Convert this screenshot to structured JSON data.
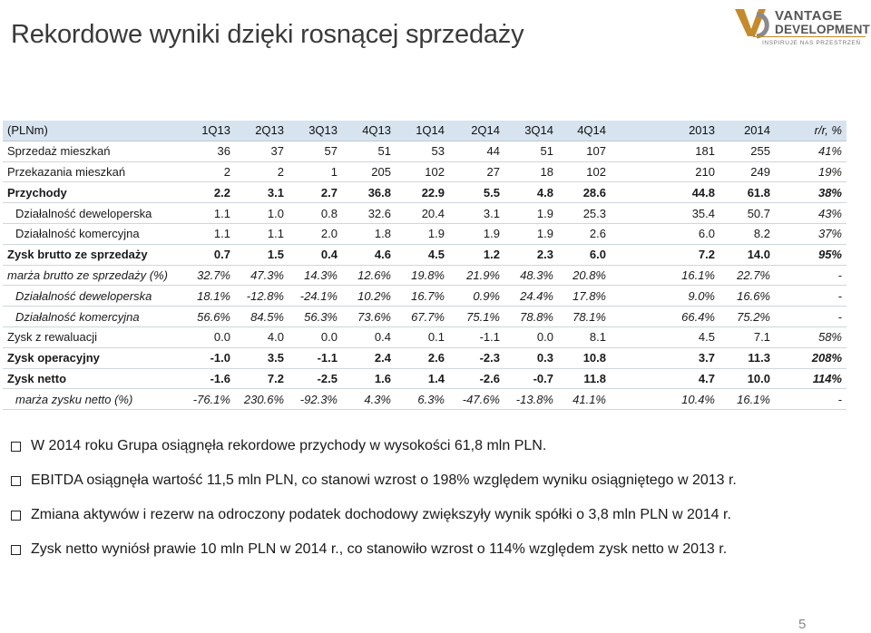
{
  "title": "Rekordowe wyniki dzięki rosnącej sprzedaży",
  "logo": {
    "line1": "VANTAGE",
    "line2": "DEVELOPMENT",
    "tagline": "INSPIRUJE NAS PRZESTRZEŃ",
    "icon": "vd-logo-icon"
  },
  "table": {
    "header": [
      "(PLNm)",
      "1Q13",
      "2Q13",
      "3Q13",
      "4Q13",
      "1Q14",
      "2Q14",
      "3Q14",
      "4Q14",
      "",
      "2013",
      "2014",
      "r/r, %"
    ],
    "rows": [
      {
        "style": "plain",
        "cells": [
          "Sprzedaż mieszkań",
          "36",
          "37",
          "57",
          "51",
          "53",
          "44",
          "51",
          "107",
          "",
          "181",
          "255",
          "41%"
        ]
      },
      {
        "style": "plain",
        "cells": [
          "Przekazania mieszkań",
          "2",
          "2",
          "1",
          "205",
          "102",
          "27",
          "18",
          "102",
          "",
          "210",
          "249",
          "19%"
        ]
      },
      {
        "style": "bold",
        "cells": [
          "Przychody",
          "2.2",
          "3.1",
          "2.7",
          "36.8",
          "22.9",
          "5.5",
          "4.8",
          "28.6",
          "",
          "44.8",
          "61.8",
          "38%"
        ]
      },
      {
        "style": "indent",
        "cells": [
          "Działalność deweloperska",
          "1.1",
          "1.0",
          "0.8",
          "32.6",
          "20.4",
          "3.1",
          "1.9",
          "25.3",
          "",
          "35.4",
          "50.7",
          "43%"
        ]
      },
      {
        "style": "indent",
        "cells": [
          "Działalność komercyjna",
          "1.1",
          "1.1",
          "2.0",
          "1.8",
          "1.9",
          "1.9",
          "1.9",
          "2.6",
          "",
          "6.0",
          "8.2",
          "37%"
        ]
      },
      {
        "style": "bold",
        "cells": [
          "Zysk brutto ze sprzedaży",
          "0.7",
          "1.5",
          "0.4",
          "4.6",
          "4.5",
          "1.2",
          "2.3",
          "6.0",
          "",
          "7.2",
          "14.0",
          "95%"
        ]
      },
      {
        "style": "italic",
        "cells": [
          "marża brutto ze sprzedaży (%)",
          "32.7%",
          "47.3%",
          "14.3%",
          "12.6%",
          "19.8%",
          "21.9%",
          "48.3%",
          "20.8%",
          "",
          "16.1%",
          "22.7%",
          "-"
        ]
      },
      {
        "style": "italic indent",
        "cells": [
          "Działalność deweloperska",
          "18.1%",
          "-12.8%",
          "-24.1%",
          "10.2%",
          "16.7%",
          "0.9%",
          "24.4%",
          "17.8%",
          "",
          "9.0%",
          "16.6%",
          "-"
        ]
      },
      {
        "style": "italic indent",
        "cells": [
          "Działalność komercyjna",
          "56.6%",
          "84.5%",
          "56.3%",
          "73.6%",
          "67.7%",
          "75.1%",
          "78.8%",
          "78.1%",
          "",
          "66.4%",
          "75.2%",
          "-"
        ]
      },
      {
        "style": "plain",
        "cells": [
          "Zysk z rewaluacji",
          "0.0",
          "4.0",
          "0.0",
          "0.4",
          "0.1",
          "-1.1",
          "0.0",
          "8.1",
          "",
          "4.5",
          "7.1",
          "58%"
        ]
      },
      {
        "style": "bold",
        "cells": [
          "Zysk operacyjny",
          "-1.0",
          "3.5",
          "-1.1",
          "2.4",
          "2.6",
          "-2.3",
          "0.3",
          "10.8",
          "",
          "3.7",
          "11.3",
          "208%"
        ]
      },
      {
        "style": "bold",
        "cells": [
          "Zysk netto",
          "-1.6",
          "7.2",
          "-2.5",
          "1.6",
          "1.4",
          "-2.6",
          "-0.7",
          "11.8",
          "",
          "4.7",
          "10.0",
          "114%"
        ]
      },
      {
        "style": "italic indent",
        "cells": [
          "marża zysku netto (%)",
          "-76.1%",
          "230.6%",
          "-92.3%",
          "4.3%",
          "6.3%",
          "-47.6%",
          "-13.8%",
          "41.1%",
          "",
          "10.4%",
          "16.1%",
          "-"
        ]
      }
    ]
  },
  "bullets": [
    "W 2014 roku Grupa osiągnęła rekordowe przychody w wysokości  61,8 mln PLN.",
    "EBITDA osiągnęła wartość 11,5 mln PLN, co stanowi wzrost o 198% względem wyniku osiągniętego w 2013 r.",
    "Zmiana aktywów i rezerw na odroczony podatek dochodowy zwiększyły wynik spółki  o 3,8 mln PLN w 2014 r.",
    "Zysk netto wyniósł prawie 10 mln PLN w 2014 r., co stanowiło wzrost o 114% względem zysk netto w 2013 r."
  ],
  "page_number": "5"
}
